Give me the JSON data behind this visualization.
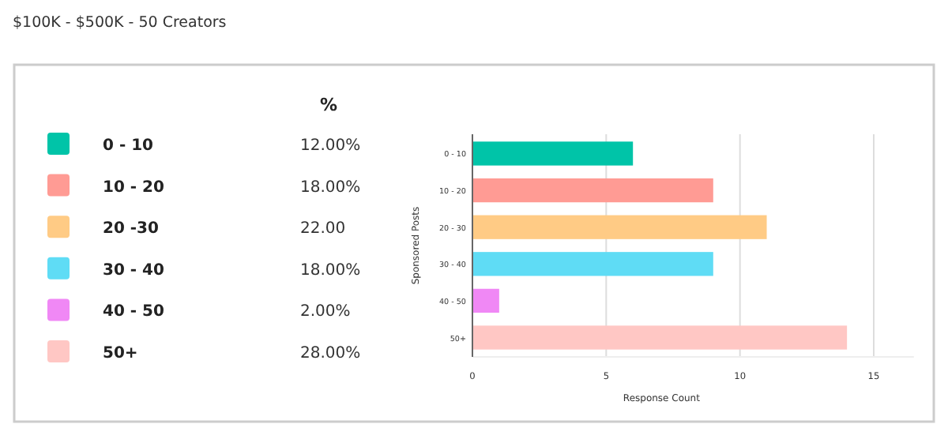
{
  "chart_data": [
    {
      "type": "other",
      "title": "$100K - $500K - 50 Creators",
      "legend_title": "%",
      "categories": [
        "0 - 10",
        "10 - 20",
        "20 -30",
        "30 - 40",
        "40 - 50",
        "50+"
      ],
      "value_labels": [
        "12.00%",
        "18.00%",
        "22.00",
        "18.00%",
        "2.00%",
        "28.00%"
      ],
      "colors": [
        "#00c4a8",
        "#ff9b94",
        "#ffcb85",
        "#5fdcf5",
        "#f088f5",
        "#ffc7c4"
      ]
    },
    {
      "type": "bar",
      "orientation": "horizontal",
      "xlabel": "Response Count",
      "ylabel": "Sponsored Posts",
      "categories": [
        "0 - 10",
        "10 - 20",
        "20 - 30",
        "30 - 40",
        "40 - 50",
        "50+"
      ],
      "values": [
        6,
        9,
        11,
        9,
        1,
        14
      ],
      "colors": [
        "#00c4a8",
        "#ff9b94",
        "#ffcb85",
        "#5fdcf5",
        "#f088f5",
        "#ffc7c4"
      ],
      "xlim": [
        0,
        16.5
      ],
      "xticks": [
        0,
        5,
        10,
        15
      ],
      "grid": "x"
    }
  ]
}
